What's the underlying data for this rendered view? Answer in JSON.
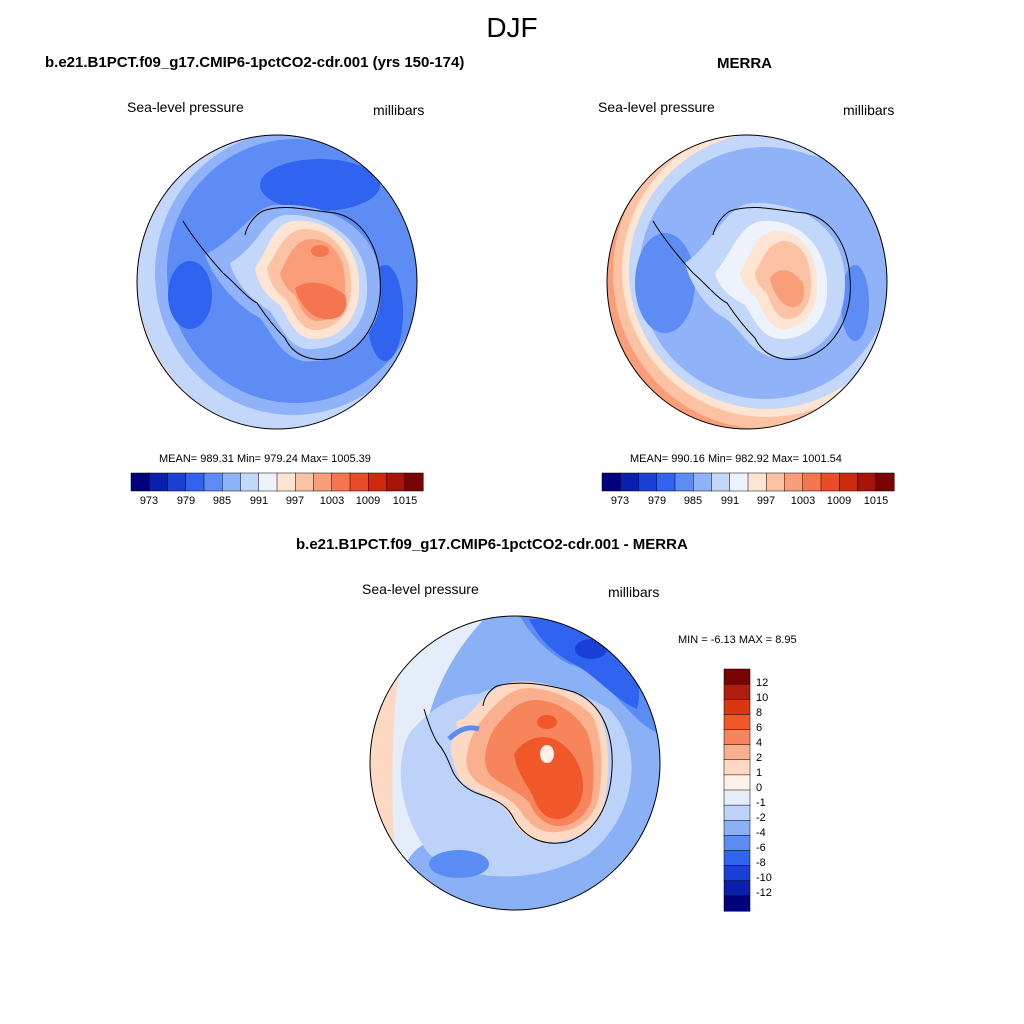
{
  "main_title": "DJF",
  "panels": [
    {
      "title": "b.e21.B1PCT.f09_g17.CMIP6-1pctCO2-cdr.001 (yrs 150-174)",
      "variable": "Sea-level pressure",
      "units": "millibars",
      "stats": "MEAN= 989.31  Min= 979.24  Max= 1005.39"
    },
    {
      "title": "MERRA",
      "variable": "Sea-level pressure",
      "units": "millibars",
      "stats": "MEAN= 990.16  Min= 982.92  Max= 1001.54"
    },
    {
      "title": "b.e21.B1PCT.f09_g17.CMIP6-1pctCO2-cdr.001 - MERRA",
      "variable": "Sea-level pressure",
      "units": "millibars",
      "stats": "MIN =  -6.13 MAX =   8.95"
    }
  ],
  "horizontal_colorbar": {
    "labels": [
      "973",
      "979",
      "985",
      "991",
      "997",
      "1003",
      "1009",
      "1015"
    ],
    "colors": [
      "#00007f",
      "#0a1fae",
      "#1a3fd6",
      "#2f63f0",
      "#5d8cf5",
      "#8fb2f8",
      "#c3d7fb",
      "#eef3fb",
      "#fde4d3",
      "#fcc2a4",
      "#fa9e79",
      "#f57550",
      "#ea4b28",
      "#cf2a10",
      "#a8140a",
      "#7a0403"
    ]
  },
  "vertical_colorbar": {
    "labels": [
      "12",
      "10",
      "8",
      "6",
      "4",
      "2",
      "1",
      "0",
      "-1",
      "-2",
      "-4",
      "-6",
      "-8",
      "-10",
      "-12"
    ],
    "colors": [
      "#7a0403",
      "#b01f0d",
      "#d9380f",
      "#f0582a",
      "#f7845a",
      "#fab08e",
      "#fdd9c4",
      "#fdf1ea",
      "#e4edf9",
      "#bcd2f8",
      "#8ab0f6",
      "#5a8cf3",
      "#2f63f0",
      "#1a3fd6",
      "#0a1fae",
      "#00007f"
    ]
  }
}
